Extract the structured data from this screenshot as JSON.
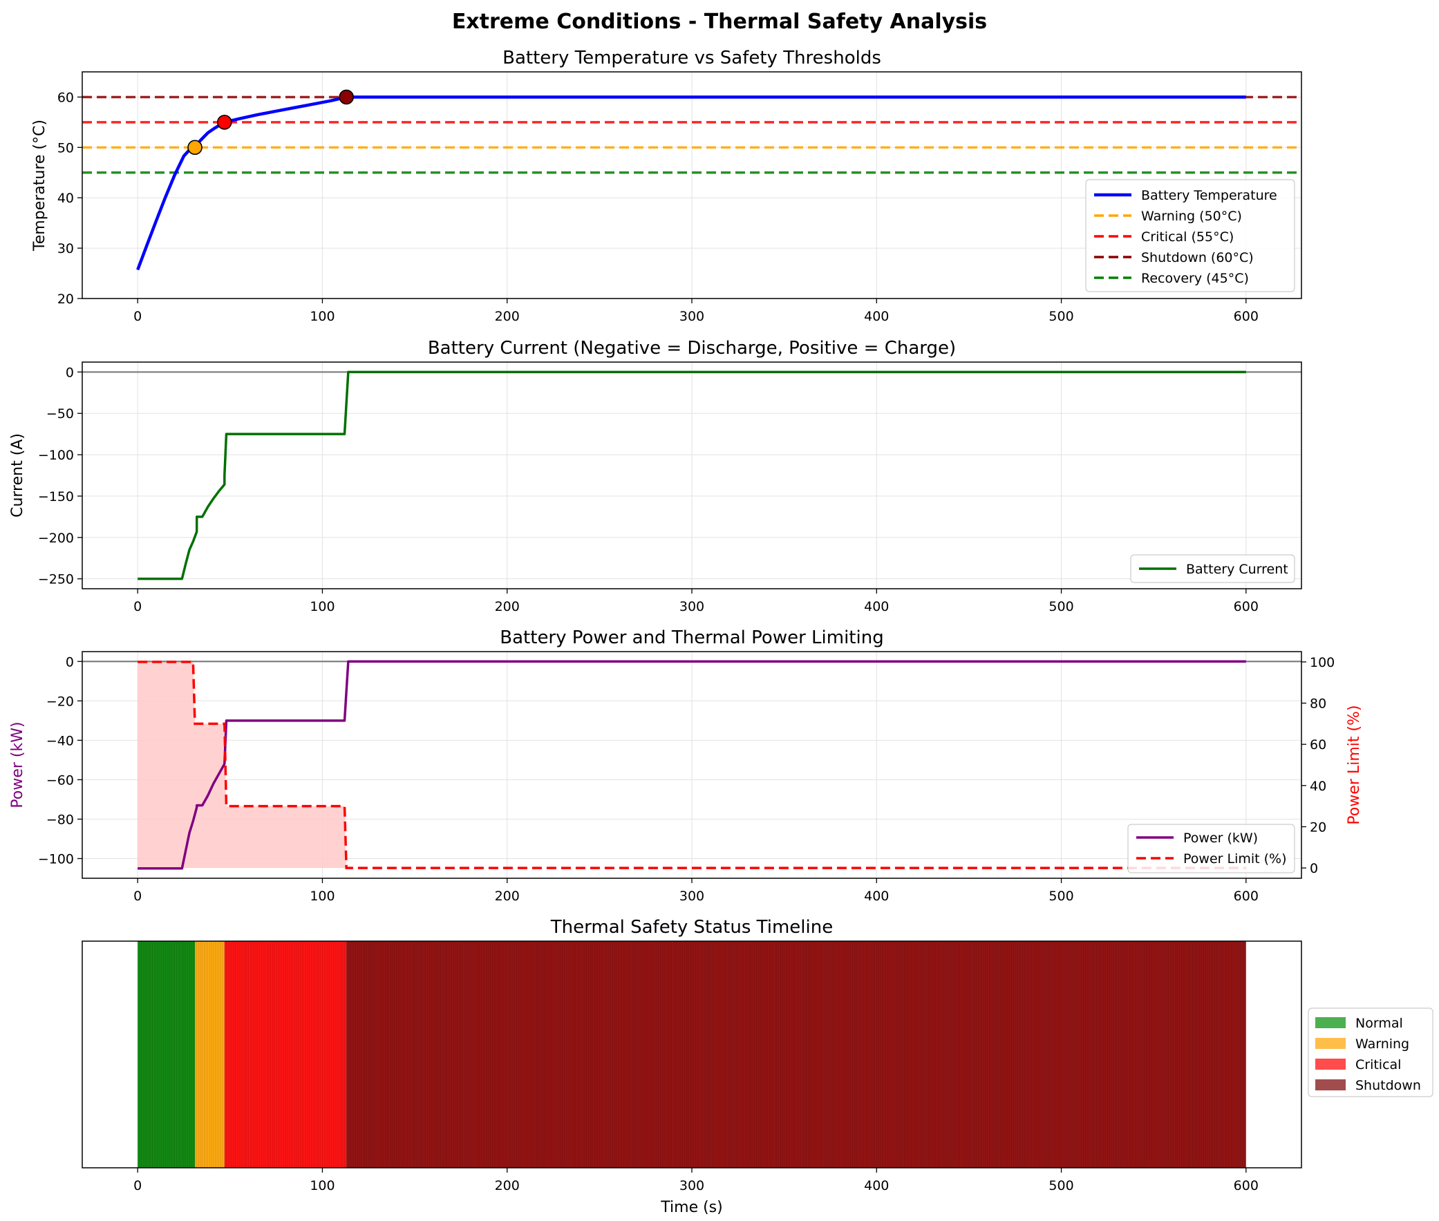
{
  "figure": {
    "title": "Extreme Conditions - Thermal Safety Analysis",
    "x_label": "Time (s)"
  },
  "colors": {
    "temperature": "#0000ff",
    "warning": "#ffa500",
    "critical": "#ff0000",
    "shutdown": "#8b0000",
    "recovery": "#008000",
    "current": "#007000",
    "power": "#800080",
    "power_limit": "#ff0000",
    "power_limit_fill": "#ffcccc",
    "zero_line": "#808080",
    "legend_normal": "#4caf50",
    "legend_warning": "#ffbe4a",
    "legend_critical": "#ff4c4c",
    "legend_shutdown": "#a24d4d"
  },
  "chart_data": [
    {
      "id": "temperature",
      "type": "line",
      "title": "Battery Temperature vs Safety Thresholds",
      "xlabel": "",
      "ylabel": "Temperature (°C)",
      "xlim": [
        -30,
        630
      ],
      "ylim": [
        20,
        65
      ],
      "xticks": [
        0,
        100,
        200,
        300,
        400,
        500,
        600
      ],
      "yticks": [
        20,
        30,
        40,
        50,
        60
      ],
      "grid": true,
      "legend_position": "lower right",
      "series": [
        {
          "name": "Battery Temperature",
          "style": "solid",
          "x": [
            0,
            5,
            10,
            15,
            20,
            25,
            29,
            31,
            34,
            38,
            42,
            47,
            55,
            65,
            75,
            85,
            95,
            105,
            113,
            150,
            200,
            300,
            400,
            500,
            600
          ],
          "y": [
            25.7,
            30.6,
            35.4,
            40.1,
            44.5,
            48.3,
            49.9,
            50.2,
            51.4,
            52.9,
            53.9,
            55.0,
            55.7,
            56.5,
            57.2,
            57.9,
            58.6,
            59.3,
            60.0,
            60.0,
            60.0,
            60.0,
            60.0,
            60.0,
            60.0
          ]
        }
      ],
      "thresholds": [
        {
          "name": "Warning (50°C)",
          "value": 50
        },
        {
          "name": "Critical (55°C)",
          "value": 55
        },
        {
          "name": "Shutdown (60°C)",
          "value": 60
        },
        {
          "name": "Recovery (45°C)",
          "value": 45
        }
      ],
      "markers": [
        {
          "x": 31,
          "y": 50,
          "state": "warning"
        },
        {
          "x": 47,
          "y": 55,
          "state": "critical"
        },
        {
          "x": 113,
          "y": 60,
          "state": "shutdown"
        }
      ]
    },
    {
      "id": "current",
      "type": "line",
      "title": "Battery Current (Negative = Discharge, Positive = Charge)",
      "xlabel": "",
      "ylabel": "Current (A)",
      "xlim": [
        -30,
        630
      ],
      "ylim": [
        -262,
        12
      ],
      "xticks": [
        0,
        100,
        200,
        300,
        400,
        500,
        600
      ],
      "yticks": [
        -250,
        -200,
        -150,
        -100,
        -50,
        0
      ],
      "grid": true,
      "legend_position": "lower right",
      "zero_line": 0,
      "series": [
        {
          "name": "Battery Current",
          "style": "solid",
          "x": [
            0,
            24,
            26,
            28,
            30,
            32,
            32,
            35,
            38,
            41,
            44,
            47,
            47,
            48,
            112,
            114,
            150,
            300,
            450,
            600
          ],
          "y": [
            -250,
            -250,
            -232,
            -215,
            -205,
            -193,
            -175,
            -175,
            -163,
            -153,
            -144,
            -136,
            -125,
            -75,
            -75,
            0,
            0,
            0,
            0,
            0
          ]
        }
      ]
    },
    {
      "id": "power",
      "type": "line",
      "title": "Battery Power and Thermal Power Limiting",
      "xlabel": "",
      "ylabel": "Power (kW)",
      "ylabel_right": "Power Limit (%)",
      "xlim": [
        -30,
        630
      ],
      "ylim": [
        -110,
        5
      ],
      "ylim_right": [
        -5,
        105
      ],
      "xticks": [
        0,
        100,
        200,
        300,
        400,
        500,
        600
      ],
      "yticks": [
        -100,
        -80,
        -60,
        -40,
        -20,
        0
      ],
      "yticks_right": [
        0,
        20,
        40,
        60,
        80,
        100
      ],
      "grid": true,
      "legend_position": "lower right",
      "zero_line": 0,
      "series": [
        {
          "name": "Power (kW)",
          "axis": "left",
          "style": "solid",
          "x": [
            0,
            24,
            26,
            28,
            30,
            32,
            32,
            35,
            38,
            41,
            44,
            47,
            48,
            112,
            114,
            150,
            300,
            450,
            600
          ],
          "y": [
            -105,
            -105,
            -96,
            -87,
            -81,
            -74,
            -73,
            -73,
            -68,
            -62,
            -57,
            -52,
            -30,
            -30,
            0,
            0,
            0,
            0,
            0
          ]
        },
        {
          "name": "Power Limit (%)",
          "axis": "right",
          "style": "dashed",
          "x": [
            0,
            30,
            31,
            47,
            48,
            112,
            113,
            600
          ],
          "y": [
            100,
            100,
            70,
            70,
            30,
            30,
            0,
            0
          ]
        }
      ]
    },
    {
      "id": "status",
      "type": "area",
      "title": "Thermal Safety Status Timeline",
      "xlabel": "Time (s)",
      "xlim": [
        -30,
        630
      ],
      "xticks": [
        0,
        100,
        200,
        300,
        400,
        500,
        600
      ],
      "legend_position": "center right outside",
      "series": [
        {
          "name": "Normal",
          "x_start": 0,
          "x_end": 31,
          "state": "normal"
        },
        {
          "name": "Warning",
          "x_start": 31,
          "x_end": 47,
          "state": "warning"
        },
        {
          "name": "Critical",
          "x_start": 47,
          "x_end": 113,
          "state": "critical"
        },
        {
          "name": "Shutdown",
          "x_start": 113,
          "x_end": 600,
          "state": "shutdown"
        }
      ]
    }
  ]
}
